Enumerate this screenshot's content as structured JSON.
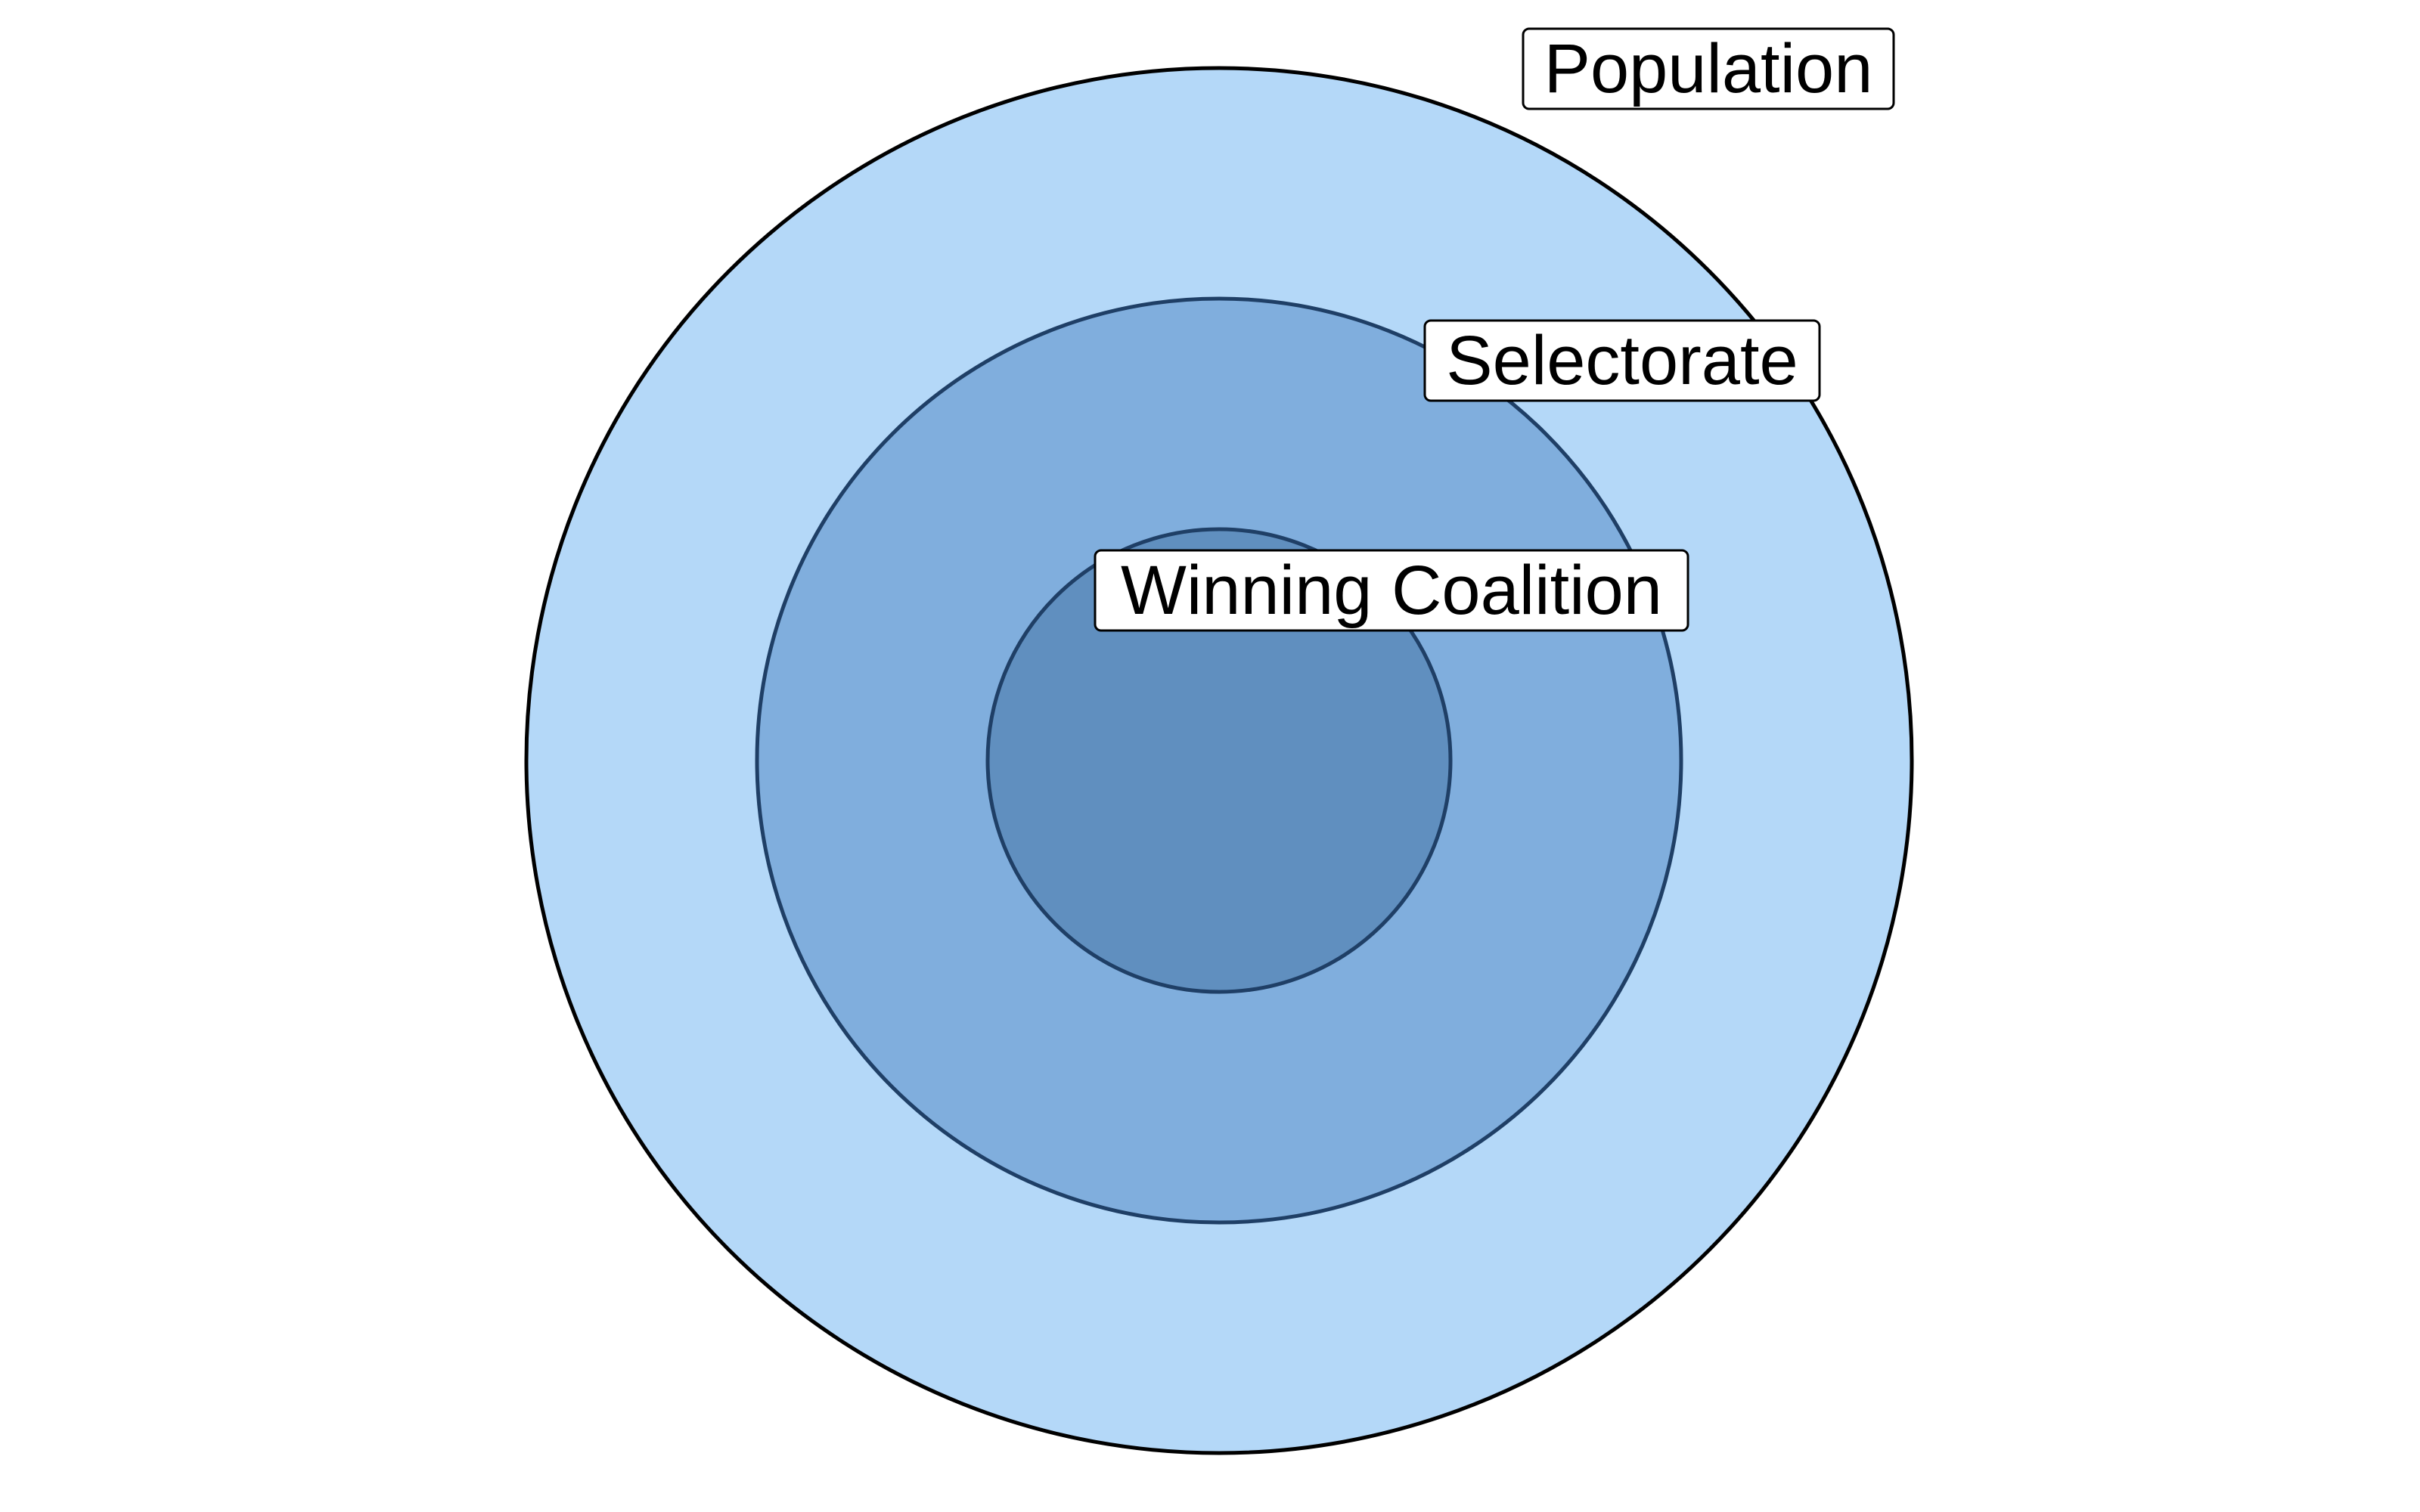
{
  "diagram": {
    "rings": [
      {
        "id": "population",
        "label": "Population",
        "fill": "#b4d8f8",
        "stroke": "#000000"
      },
      {
        "id": "selectorate",
        "label": "Selectorate",
        "fill": "#80aedd",
        "stroke": "#1f3f66"
      },
      {
        "id": "winning-coalition",
        "label": "Winning Coalition",
        "fill": "#608fbf",
        "stroke": "#1f3f66"
      }
    ]
  }
}
